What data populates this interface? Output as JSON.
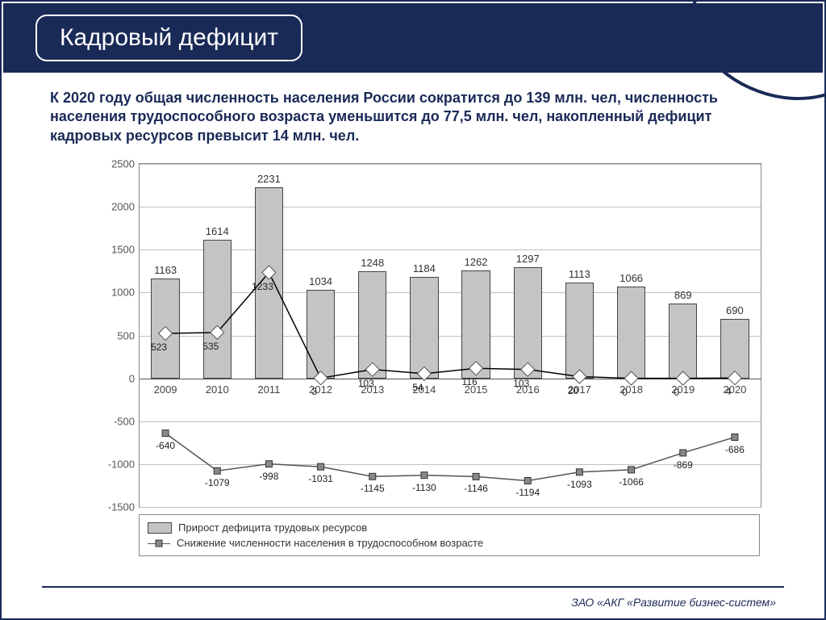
{
  "title": "Кадровый дефицит",
  "subtitle": "К 2020 году общая численность населения России  сократится до 139 млн. чел, численность населения трудоспособного возраста уменьшится до 77,5 млн. чел, накопленный дефицит кадровых ресурсов превысит 14 млн. чел.",
  "chart": {
    "type": "bar+line",
    "categories": [
      "2009",
      "2010",
      "2011",
      "2012",
      "2013",
      "2014",
      "2015",
      "2016",
      "2017",
      "2018",
      "2019",
      "2020"
    ],
    "bars": {
      "name": "Прирост дефицита трудовых ресурсов",
      "values": [
        1163,
        1614,
        2231,
        1034,
        1248,
        1184,
        1262,
        1297,
        1113,
        1066,
        869,
        690
      ],
      "color": "#c4c4c4",
      "border": "#444444",
      "bar_width_frac": 0.55
    },
    "line1": {
      "name": "line-diamond",
      "values": [
        523,
        535,
        1233,
        3,
        103,
        54,
        116,
        103,
        20,
        0,
        0,
        4
      ],
      "stroke": "#000000",
      "stroke_width": 1.5,
      "marker": "diamond",
      "marker_fill": "#ffffff",
      "marker_stroke": "#555555",
      "marker_size": 12
    },
    "line2": {
      "name": "Снижение численности населения в трудоспособном возрасте",
      "values": [
        -640,
        -1079,
        -998,
        -1031,
        -1145,
        -1130,
        -1146,
        -1194,
        -1093,
        -1066,
        -869,
        -686
      ],
      "stroke": "#555555",
      "stroke_width": 1.5,
      "marker": "square",
      "marker_fill": "#888888",
      "marker_stroke": "#333333",
      "marker_size": 8
    },
    "ylim": [
      -1500,
      2500
    ],
    "ytick_step": 500,
    "grid_color": "#c0c0c0",
    "background_color": "#ffffff",
    "tick_fontsize": 13,
    "value_label_fontsize": 13
  },
  "legend": {
    "items": [
      "Прирост дефицита трудовых ресурсов",
      "Снижение численности населения в трудоспособном возрасте"
    ]
  },
  "footer": "ЗАО «АКГ «Развитие бизнес-систем»",
  "colors": {
    "brand_navy": "#1a2a57"
  }
}
